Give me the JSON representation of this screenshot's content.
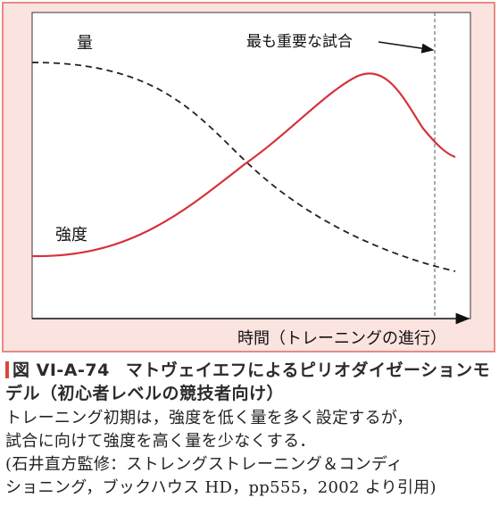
{
  "figure": {
    "labels": {
      "volume": "量",
      "intensity": "強度",
      "key_match": "最も重要な試合",
      "x_axis": "時間（トレーニングの進行）"
    },
    "colors": {
      "frame_bg": "#fbe3df",
      "frame_border": "#e58b85",
      "intensity_line": "#d6323a",
      "volume_line": "#222222",
      "accent": "#d9473e"
    }
  },
  "caption": {
    "figure_number": "図 VI-A-74",
    "title": "マトヴェイエフによるピリオダイゼーションモデル（初心者レベルの競技者向け）",
    "body_line1": "トレーニング初期は，強度を低く量を多く設定するが，",
    "body_line2": "試合に向けて強度を高く量を少なくする．",
    "source_line1": "(石井直方監修：ストレングストレーニング＆コンディ",
    "source_line2": "ショニング，ブックハウス HD，pp555，2002 より引用)"
  }
}
